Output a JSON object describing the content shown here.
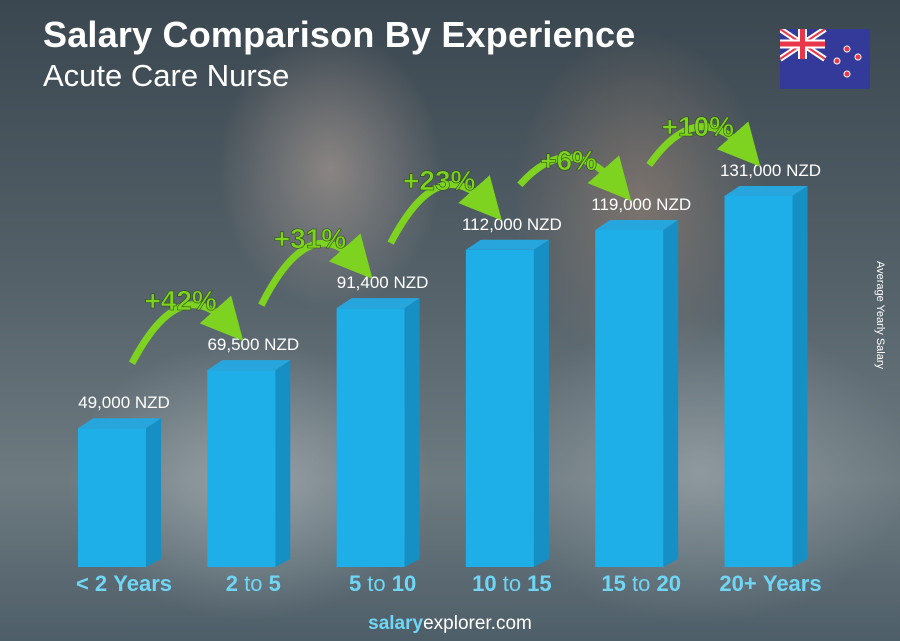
{
  "header": {
    "title": "Salary Comparison By Experience",
    "subtitle": "Acute Care Nurse"
  },
  "flag_icon": "new-zealand-flag",
  "footer": {
    "brand_bold": "salary",
    "brand_rest": "explorer.com"
  },
  "chart_data": {
    "type": "bar",
    "title": "Salary Comparison By Experience",
    "subtitle": "Acute Care Nurse",
    "ylabel": "Average Yearly Salary",
    "categories": [
      "< 2 Years",
      "2 to 5",
      "5 to 10",
      "10 to 15",
      "15 to 20",
      "20+ Years"
    ],
    "category_parts": [
      [
        "< 2",
        " ",
        "Years"
      ],
      [
        "2",
        "to",
        "5"
      ],
      [
        "5",
        "to",
        "10"
      ],
      [
        "10",
        "to",
        "15"
      ],
      [
        "15",
        "to",
        "20"
      ],
      [
        "20+",
        " ",
        "Years"
      ]
    ],
    "values": [
      49000,
      69500,
      91400,
      112000,
      119000,
      131000
    ],
    "data_labels": [
      "49,000 NZD",
      "69,500 NZD",
      "91,400 NZD",
      "112,000 NZD",
      "119,000 NZD",
      "131,000 NZD"
    ],
    "increases": [
      "+42%",
      "+31%",
      "+23%",
      "+6%",
      "+10%"
    ],
    "currency": "NZD",
    "ylim": [
      0,
      131000
    ],
    "bar_color": "#1eaee8",
    "arrow_color": "#7ed321",
    "label_color": "#6fd6f6"
  }
}
